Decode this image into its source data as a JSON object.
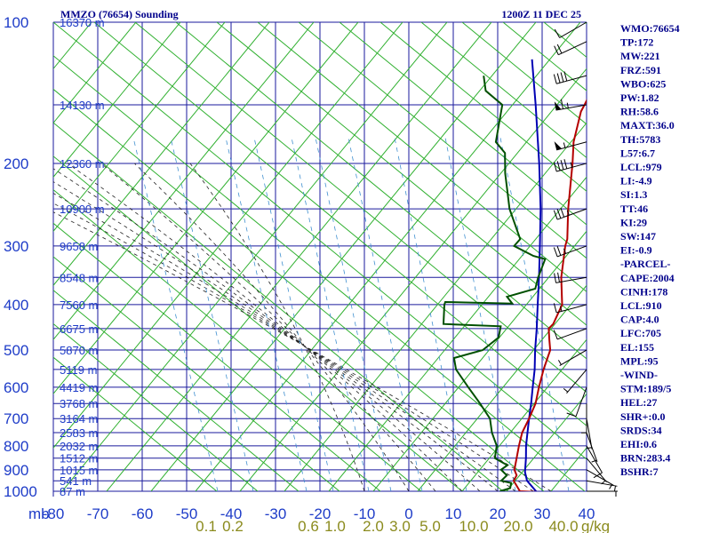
{
  "header": {
    "station": "MMZO (76654) Sounding",
    "time": "1200Z 11 DEC 25"
  },
  "chart_data": {
    "type": "line",
    "subtype": "skew-T log-P sounding",
    "colors": {
      "temperature": "#b40000",
      "dewpoint": "#005000",
      "parcel": "#0000b4",
      "grid": "#1a1a9c",
      "dry_adiabat": "#30b030",
      "moist_adiabat": "#222222",
      "mixing_ratio": "#4090d0",
      "wind": "#000000"
    },
    "pressure_axis": {
      "ticks": [
        100,
        200,
        300,
        400,
        500,
        600,
        700,
        800,
        900,
        1000
      ],
      "grid": [
        100,
        150,
        200,
        250,
        300,
        350,
        400,
        450,
        500,
        550,
        600,
        650,
        700,
        750,
        800,
        850,
        900,
        950,
        1000
      ]
    },
    "temp_axis": {
      "unit_label": "mb",
      "ticks": [
        -80,
        -70,
        -60,
        -50,
        -40,
        -30,
        -20,
        -10,
        0,
        10,
        20,
        30,
        40
      ]
    },
    "mixing_axis": {
      "ticks": [
        "0.1",
        "0.2",
        "0.6",
        "1.0",
        "2.0",
        "3.0",
        "5.0",
        "10.0",
        "20.0",
        "40.0"
      ],
      "unit": "g/kg"
    },
    "heights": [
      {
        "p": 100,
        "label": "16370 m"
      },
      {
        "p": 150,
        "label": "14130 m"
      },
      {
        "p": 200,
        "label": "12360 m"
      },
      {
        "p": 250,
        "label": "10900 m"
      },
      {
        "p": 300,
        "label": "9658 m"
      },
      {
        "p": 350,
        "label": "8548 m"
      },
      {
        "p": 400,
        "label": "7560 m"
      },
      {
        "p": 450,
        "label": "6675 m"
      },
      {
        "p": 500,
        "label": "5870 m"
      },
      {
        "p": 550,
        "label": "5119 m"
      },
      {
        "p": 600,
        "label": "4419 m"
      },
      {
        "p": 650,
        "label": "3768 m"
      },
      {
        "p": 700,
        "label": "3164 m"
      },
      {
        "p": 750,
        "label": "2583 m"
      },
      {
        "p": 800,
        "label": "2032 m"
      },
      {
        "p": 850,
        "label": "1512 m"
      },
      {
        "p": 900,
        "label": "1015 m"
      },
      {
        "p": 950,
        "label": "541 m"
      },
      {
        "p": 1000,
        "label": "87 m"
      }
    ],
    "temperature": [
      {
        "p": 1004,
        "t": 29.0
      },
      {
        "p": 1000,
        "t": 25.0
      },
      {
        "p": 950,
        "t": 20.8
      },
      {
        "p": 925,
        "t": 20.0
      },
      {
        "p": 900,
        "t": 18.0
      },
      {
        "p": 850,
        "t": 15.4
      },
      {
        "p": 800,
        "t": 12.6
      },
      {
        "p": 750,
        "t": 9.8
      },
      {
        "p": 700,
        "t": 7.6
      },
      {
        "p": 650,
        "t": 5.0
      },
      {
        "p": 600,
        "t": 1.4
      },
      {
        "p": 550,
        "t": -2.3
      },
      {
        "p": 500,
        "t": -6.0
      },
      {
        "p": 475,
        "t": -9.0
      },
      {
        "p": 450,
        "t": -12.1
      },
      {
        "p": 440,
        "t": -12.3
      },
      {
        "p": 400,
        "t": -15.5
      },
      {
        "p": 350,
        "t": -23.0
      },
      {
        "p": 300,
        "t": -30.5
      },
      {
        "p": 290,
        "t": -31.9
      },
      {
        "p": 250,
        "t": -39.8
      },
      {
        "p": 200,
        "t": -51.0
      },
      {
        "p": 180,
        "t": -56.5
      },
      {
        "p": 155,
        "t": -63.0
      },
      {
        "p": 150,
        "t": -64.0
      },
      {
        "p": 130,
        "t": -68.5
      },
      {
        "p": 120,
        "t": -72.0
      },
      {
        "p": 110,
        "t": -75.5
      },
      {
        "p": 100,
        "t": -79.0
      }
    ],
    "dewpoint": [
      {
        "p": 1004,
        "t": 23.0
      },
      {
        "p": 1000,
        "t": 20.5
      },
      {
        "p": 985,
        "t": 22.0
      },
      {
        "p": 960,
        "t": 20.8
      },
      {
        "p": 950,
        "t": 18.0
      },
      {
        "p": 925,
        "t": 17.8
      },
      {
        "p": 900,
        "t": 15.0
      },
      {
        "p": 880,
        "t": 15.2
      },
      {
        "p": 850,
        "t": 10.5
      },
      {
        "p": 800,
        "t": 7.6
      },
      {
        "p": 750,
        "t": 3.0
      },
      {
        "p": 700,
        "t": -1.2
      },
      {
        "p": 650,
        "t": -7.5
      },
      {
        "p": 600,
        "t": -14.5
      },
      {
        "p": 550,
        "t": -22.0
      },
      {
        "p": 520,
        "t": -25.5
      },
      {
        "p": 500,
        "t": -21.2
      },
      {
        "p": 470,
        "t": -21.0
      },
      {
        "p": 445,
        "t": -23.5
      },
      {
        "p": 440,
        "t": -37.0
      },
      {
        "p": 400,
        "t": -42.0
      },
      {
        "p": 395,
        "t": -42.5
      },
      {
        "p": 398,
        "t": -27.0
      },
      {
        "p": 385,
        "t": -30.0
      },
      {
        "p": 370,
        "t": -25.8
      },
      {
        "p": 350,
        "t": -28.2
      },
      {
        "p": 320,
        "t": -31.5
      },
      {
        "p": 315,
        "t": -35.0
      },
      {
        "p": 300,
        "t": -42.0
      },
      {
        "p": 290,
        "t": -42.5
      },
      {
        "p": 250,
        "t": -53.0
      },
      {
        "p": 230,
        "t": -58.0
      },
      {
        "p": 210,
        "t": -63.5
      },
      {
        "p": 190,
        "t": -69.0
      },
      {
        "p": 180,
        "t": -74.0
      },
      {
        "p": 150,
        "t": -82.5
      },
      {
        "p": 140,
        "t": -90.0
      },
      {
        "p": 130,
        "t": -94.5
      }
    ],
    "parcel": [
      {
        "p": 1004,
        "t": 29.0
      },
      {
        "p": 950,
        "t": 23.8
      },
      {
        "p": 910,
        "t": 21.0
      },
      {
        "p": 850,
        "t": 17.5
      },
      {
        "p": 800,
        "t": 14.2
      },
      {
        "p": 750,
        "t": 11.0
      },
      {
        "p": 700,
        "t": 7.6
      },
      {
        "p": 650,
        "t": 4.0
      },
      {
        "p": 600,
        "t": 0.0
      },
      {
        "p": 550,
        "t": -4.3
      },
      {
        "p": 500,
        "t": -9.4
      },
      {
        "p": 450,
        "t": -14.8
      },
      {
        "p": 400,
        "t": -21.0
      },
      {
        "p": 350,
        "t": -28.0
      },
      {
        "p": 300,
        "t": -36.2
      },
      {
        "p": 250,
        "t": -46.0
      },
      {
        "p": 200,
        "t": -58.5
      },
      {
        "p": 150,
        "t": -75.0
      },
      {
        "p": 120,
        "t": -88.0
      }
    ],
    "winds": [
      {
        "p": 1000,
        "dir": 90,
        "spd": 5
      },
      {
        "p": 950,
        "dir": 100,
        "spd": 5
      },
      {
        "p": 900,
        "dir": 120,
        "spd": 5
      },
      {
        "p": 850,
        "dir": 140,
        "spd": 5
      },
      {
        "p": 800,
        "dir": 150,
        "spd": 10
      },
      {
        "p": 750,
        "dir": 160,
        "spd": 5
      },
      {
        "p": 700,
        "dir": 170,
        "spd": 5
      },
      {
        "p": 650,
        "dir": 180,
        "spd": 5
      },
      {
        "p": 600,
        "dir": 200,
        "spd": 10
      },
      {
        "p": 550,
        "dir": 220,
        "spd": 5
      },
      {
        "p": 500,
        "dir": 240,
        "spd": 5
      },
      {
        "p": 450,
        "dir": 250,
        "spd": 10
      },
      {
        "p": 400,
        "dir": 255,
        "spd": 15
      },
      {
        "p": 350,
        "dir": 260,
        "spd": 20
      },
      {
        "p": 300,
        "dir": 250,
        "spd": 25
      },
      {
        "p": 250,
        "dir": 250,
        "spd": 35
      },
      {
        "p": 200,
        "dir": 255,
        "spd": 45
      },
      {
        "p": 180,
        "dir": 255,
        "spd": 55
      },
      {
        "p": 150,
        "dir": 260,
        "spd": 65
      },
      {
        "p": 130,
        "dir": 255,
        "spd": 40
      },
      {
        "p": 110,
        "dir": 245,
        "spd": 20
      },
      {
        "p": 100,
        "dir": 240,
        "spd": 10
      }
    ]
  },
  "indices": [
    "WMO:76654",
    "TP:172",
    "MW:221",
    "FRZ:591",
    "WBO:625",
    "PW:1.82",
    "RH:58.6",
    "MAXT:36.0",
    "TH:5783",
    "L57:6.7",
    "LCL:979",
    "LI:-4.9",
    "SI:1.3",
    "TT:46",
    "KI:29",
    "SW:147",
    "EI:-0.9",
    "-PARCEL-",
    "CAPE:2004",
    "CINH:178",
    "LCL:910",
    "CAP:4.0",
    "LFC:705",
    "EL:155",
    "MPL:95",
    "-WIND-",
    "STM:189/5",
    "HEL:27",
    "SHR+:0.0",
    "SRDS:34",
    "EHI:0.6",
    "BRN:283.4",
    "BSHR:7"
  ]
}
